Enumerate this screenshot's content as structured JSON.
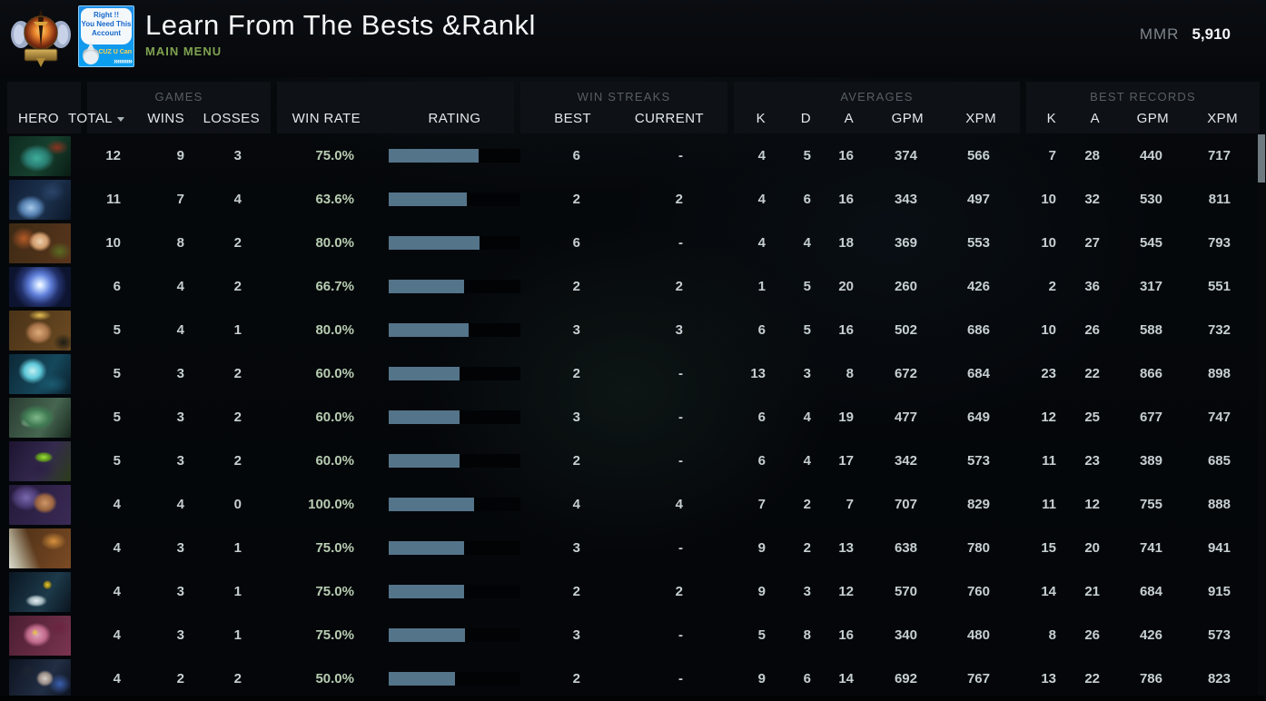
{
  "header": {
    "title": "Learn From The Bests &Rankl",
    "subtitle": "MAIN MENU",
    "mmr_label": "MMR",
    "mmr_value": "5,910",
    "avatar": {
      "line1": "Right !!",
      "line2": "You Need This",
      "line3": "Account",
      "badge": "CUZ U Can",
      "chevrons": "»»»»»"
    }
  },
  "table": {
    "groups": {
      "games": "GAMES",
      "win_streaks": "WIN STREAKS",
      "averages": "AVERAGES",
      "best_records": "BEST RECORDS"
    },
    "columns": {
      "hero": "HERO",
      "total": "TOTAL",
      "wins": "WINS",
      "losses": "LOSSES",
      "win_rate": "WIN RATE",
      "rating": "RATING",
      "best": "BEST",
      "current": "CURRENT",
      "k": "K",
      "d": "D",
      "a": "A",
      "gpm": "GPM",
      "xpm": "XPM",
      "rec_k": "K",
      "rec_a": "A",
      "rec_gpm": "GPM",
      "rec_xpm": "XPM"
    },
    "colors": {
      "rating_bar_fill": "#54748a",
      "rating_bar_empty": "#010304",
      "win_rate_text": "#b7ccb1",
      "accent_green": "#7fa24f"
    },
    "rows": [
      {
        "hero": "juggernaut",
        "total": "12",
        "wins": "9",
        "losses": "3",
        "win_rate": "75.0%",
        "rating_pct": 68,
        "best": "6",
        "current": "-",
        "k": "4",
        "d": "5",
        "a": "16",
        "gpm": "374",
        "xpm": "566",
        "rec_k": "7",
        "rec_a": "28",
        "rec_gpm": "440",
        "rec_xpm": "717"
      },
      {
        "hero": "spirit-breaker",
        "total": "11",
        "wins": "7",
        "losses": "4",
        "win_rate": "63.6%",
        "rating_pct": 59,
        "best": "2",
        "current": "2",
        "k": "4",
        "d": "6",
        "a": "16",
        "gpm": "343",
        "xpm": "497",
        "rec_k": "10",
        "rec_a": "32",
        "rec_gpm": "530",
        "rec_xpm": "811"
      },
      {
        "hero": "windranger",
        "total": "10",
        "wins": "8",
        "losses": "2",
        "win_rate": "80.0%",
        "rating_pct": 69,
        "best": "6",
        "current": "-",
        "k": "4",
        "d": "4",
        "a": "18",
        "gpm": "369",
        "xpm": "553",
        "rec_k": "10",
        "rec_a": "27",
        "rec_gpm": "545",
        "rec_xpm": "793"
      },
      {
        "hero": "io",
        "total": "6",
        "wins": "4",
        "losses": "2",
        "win_rate": "66.7%",
        "rating_pct": 57,
        "best": "2",
        "current": "2",
        "k": "1",
        "d": "5",
        "a": "20",
        "gpm": "260",
        "xpm": "426",
        "rec_k": "2",
        "rec_a": "36",
        "rec_gpm": "317",
        "rec_xpm": "551"
      },
      {
        "hero": "monkey-king",
        "total": "5",
        "wins": "4",
        "losses": "1",
        "win_rate": "80.0%",
        "rating_pct": 61,
        "best": "3",
        "current": "3",
        "k": "6",
        "d": "5",
        "a": "16",
        "gpm": "502",
        "xpm": "686",
        "rec_k": "10",
        "rec_a": "26",
        "rec_gpm": "588",
        "rec_xpm": "732"
      },
      {
        "hero": "morphling",
        "total": "5",
        "wins": "3",
        "losses": "2",
        "win_rate": "60.0%",
        "rating_pct": 54,
        "best": "2",
        "current": "-",
        "k": "13",
        "d": "3",
        "a": "8",
        "gpm": "672",
        "xpm": "684",
        "rec_k": "23",
        "rec_a": "22",
        "rec_gpm": "866",
        "rec_xpm": "898"
      },
      {
        "hero": "tidehunter",
        "total": "5",
        "wins": "3",
        "losses": "2",
        "win_rate": "60.0%",
        "rating_pct": 54,
        "best": "3",
        "current": "-",
        "k": "6",
        "d": "4",
        "a": "19",
        "gpm": "477",
        "xpm": "649",
        "rec_k": "12",
        "rec_a": "25",
        "rec_gpm": "677",
        "rec_xpm": "747"
      },
      {
        "hero": "rubick",
        "total": "5",
        "wins": "3",
        "losses": "2",
        "win_rate": "60.0%",
        "rating_pct": 54,
        "best": "2",
        "current": "-",
        "k": "6",
        "d": "4",
        "a": "17",
        "gpm": "342",
        "xpm": "573",
        "rec_k": "11",
        "rec_a": "23",
        "rec_gpm": "389",
        "rec_xpm": "685"
      },
      {
        "hero": "anti-mage",
        "total": "4",
        "wins": "4",
        "losses": "0",
        "win_rate": "100.0%",
        "rating_pct": 65,
        "best": "4",
        "current": "4",
        "k": "7",
        "d": "2",
        "a": "7",
        "gpm": "707",
        "xpm": "829",
        "rec_k": "11",
        "rec_a": "12",
        "rec_gpm": "755",
        "rec_xpm": "888"
      },
      {
        "hero": "troll-warlord",
        "total": "4",
        "wins": "3",
        "losses": "1",
        "win_rate": "75.0%",
        "rating_pct": 57,
        "best": "3",
        "current": "-",
        "k": "9",
        "d": "2",
        "a": "13",
        "gpm": "638",
        "xpm": "780",
        "rec_k": "15",
        "rec_a": "20",
        "rec_gpm": "741",
        "rec_xpm": "941"
      },
      {
        "hero": "slark",
        "total": "4",
        "wins": "3",
        "losses": "1",
        "win_rate": "75.0%",
        "rating_pct": 57,
        "best": "2",
        "current": "2",
        "k": "9",
        "d": "3",
        "a": "12",
        "gpm": "570",
        "xpm": "760",
        "rec_k": "14",
        "rec_a": "21",
        "rec_gpm": "684",
        "rec_xpm": "915"
      },
      {
        "hero": "naga-siren",
        "total": "4",
        "wins": "3",
        "losses": "1",
        "win_rate": "75.0%",
        "rating_pct": 58,
        "best": "3",
        "current": "-",
        "k": "5",
        "d": "8",
        "a": "16",
        "gpm": "340",
        "xpm": "480",
        "rec_k": "8",
        "rec_a": "26",
        "rec_gpm": "426",
        "rec_xpm": "573"
      },
      {
        "hero": "luna",
        "total": "4",
        "wins": "2",
        "losses": "2",
        "win_rate": "50.0%",
        "rating_pct": 50,
        "best": "2",
        "current": "-",
        "k": "9",
        "d": "6",
        "a": "14",
        "gpm": "692",
        "xpm": "767",
        "rec_k": "13",
        "rec_a": "22",
        "rec_gpm": "786",
        "rec_xpm": "823"
      }
    ]
  }
}
